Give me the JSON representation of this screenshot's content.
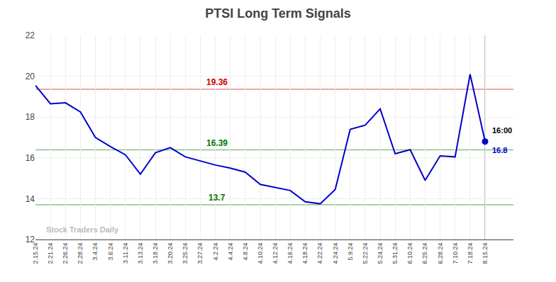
{
  "chart_data": {
    "type": "line",
    "title": "PTSI Long Term Signals",
    "categories": [
      "2.15.24",
      "2.21.24",
      "2.26.24",
      "2.28.24",
      "3.4.24",
      "3.6.24",
      "3.11.24",
      "3.13.24",
      "3.18.24",
      "3.20.24",
      "3.25.24",
      "3.27.24",
      "4.2.24",
      "4.4.24",
      "4.8.24",
      "4.10.24",
      "4.12.24",
      "4.16.24",
      "4.18.24",
      "4.22.24",
      "4.24.24",
      "5.9.24",
      "5.22.24",
      "5.24.24",
      "5.31.24",
      "6.10.24",
      "6.25.24",
      "6.28.24",
      "7.10.24",
      "7.18.24",
      "8.15.24"
    ],
    "values": [
      19.55,
      18.65,
      18.7,
      18.25,
      17.0,
      16.55,
      16.15,
      15.2,
      16.25,
      16.5,
      16.05,
      15.85,
      15.65,
      15.5,
      15.3,
      14.7,
      14.55,
      14.4,
      13.85,
      13.75,
      14.45,
      17.4,
      17.6,
      18.4,
      16.2,
      16.4,
      14.9,
      16.1,
      16.05,
      20.1,
      16.8
    ],
    "color": "#0000cc",
    "ylim": [
      12,
      22
    ],
    "yticks": [
      12,
      14,
      16,
      18,
      20,
      22
    ],
    "grid": true,
    "hlines": [
      {
        "value": 19.36,
        "label": "19.36",
        "color": "#cc0000"
      },
      {
        "value": 16.39,
        "label": "16.39",
        "color": "#007700"
      },
      {
        "value": 13.7,
        "label": "13.7",
        "color": "#007700"
      }
    ],
    "vline": {
      "category": "8.15.24",
      "color": "#888888"
    },
    "annotations": [
      {
        "category": "8.15.24",
        "y": 16.8,
        "text": "16:00",
        "color": "#000000"
      },
      {
        "category": "8.15.24",
        "y": 16.8,
        "text": "16.8",
        "color": "#0000cc"
      }
    ],
    "watermark": {
      "text": "Stock Traders Daily",
      "color": "#bbbbbb"
    }
  }
}
